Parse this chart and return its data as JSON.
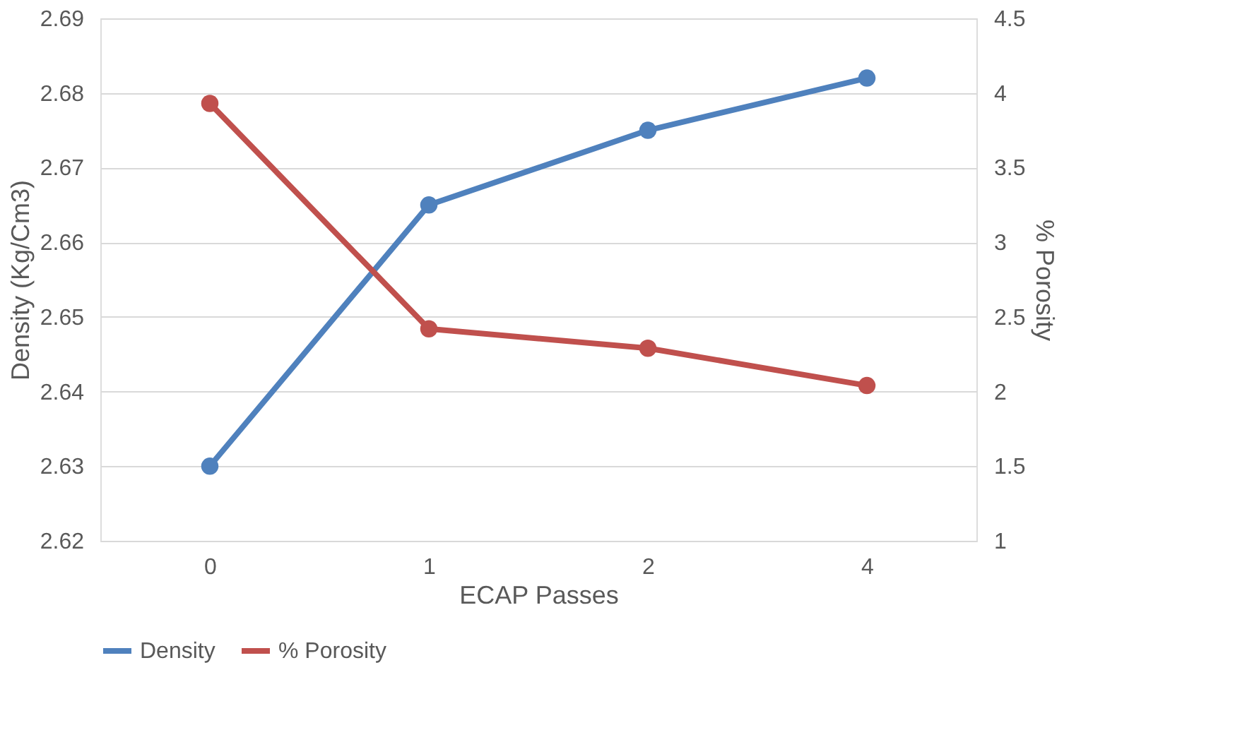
{
  "chart_data": {
    "type": "line",
    "categories": [
      "0",
      "1",
      "2",
      "4"
    ],
    "xlabel": "ECAP Passes",
    "ylabel": "Density (Kg/Cm3)",
    "y2label": "% Porosity",
    "series": [
      {
        "name": "Density",
        "color": "#4f81bd",
        "values": [
          2.63,
          2.665,
          2.675,
          2.682
        ]
      },
      {
        "name": "% Porosity",
        "color": "#c0504d",
        "values": [
          3.93,
          2.42,
          2.29,
          2.04
        ],
        "axis": "y2"
      }
    ],
    "ylim": [
      2.62,
      2.69
    ],
    "yticks": [
      2.62,
      2.63,
      2.64,
      2.65,
      2.66,
      2.67,
      2.68,
      2.69
    ],
    "y2lim": [
      1,
      4.5
    ],
    "y2ticks": [
      1,
      1.5,
      2,
      2.5,
      3,
      3.5,
      4,
      4.5
    ],
    "grid": "y",
    "legend": "bottom",
    "marker": "circle",
    "line_style": "solid"
  }
}
